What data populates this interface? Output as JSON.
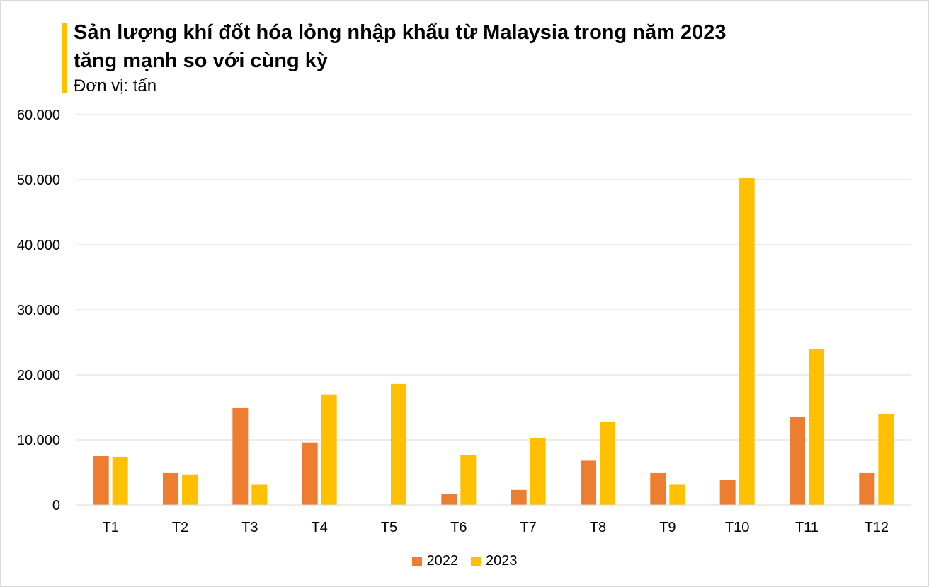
{
  "colors": {
    "accent": "#FFC000",
    "series_2022": "#ED7D31",
    "series_2023": "#FFC000",
    "grid": "#D9D9D9"
  },
  "chart_data": {
    "type": "bar",
    "title_line1": "Sản lượng khí đốt hóa lỏng nhập khẩu từ Malaysia trong năm 2023",
    "title_line2": "tăng mạnh so với cùng kỳ",
    "subtitle": "Đơn vị: tấn",
    "categories": [
      "T1",
      "T2",
      "T3",
      "T4",
      "T5",
      "T6",
      "T7",
      "T8",
      "T9",
      "T10",
      "T11",
      "T12"
    ],
    "series": [
      {
        "name": "2022",
        "values": [
          7500,
          4900,
          14900,
          9600,
          0,
          1700,
          2300,
          6800,
          4900,
          3900,
          13500,
          4900
        ]
      },
      {
        "name": "2023",
        "values": [
          7400,
          4700,
          3100,
          17000,
          18600,
          7700,
          10300,
          12800,
          3100,
          50300,
          24000,
          14000
        ]
      }
    ],
    "ylim": [
      0,
      60000
    ],
    "y_ticks": [
      0,
      10000,
      20000,
      30000,
      40000,
      50000,
      60000
    ],
    "y_tick_labels": [
      "0",
      "10.000",
      "20.000",
      "30.000",
      "40.000",
      "50.000",
      "60.000"
    ],
    "xlabel": "",
    "ylabel": "",
    "grid": true,
    "legend_position": "bottom"
  }
}
